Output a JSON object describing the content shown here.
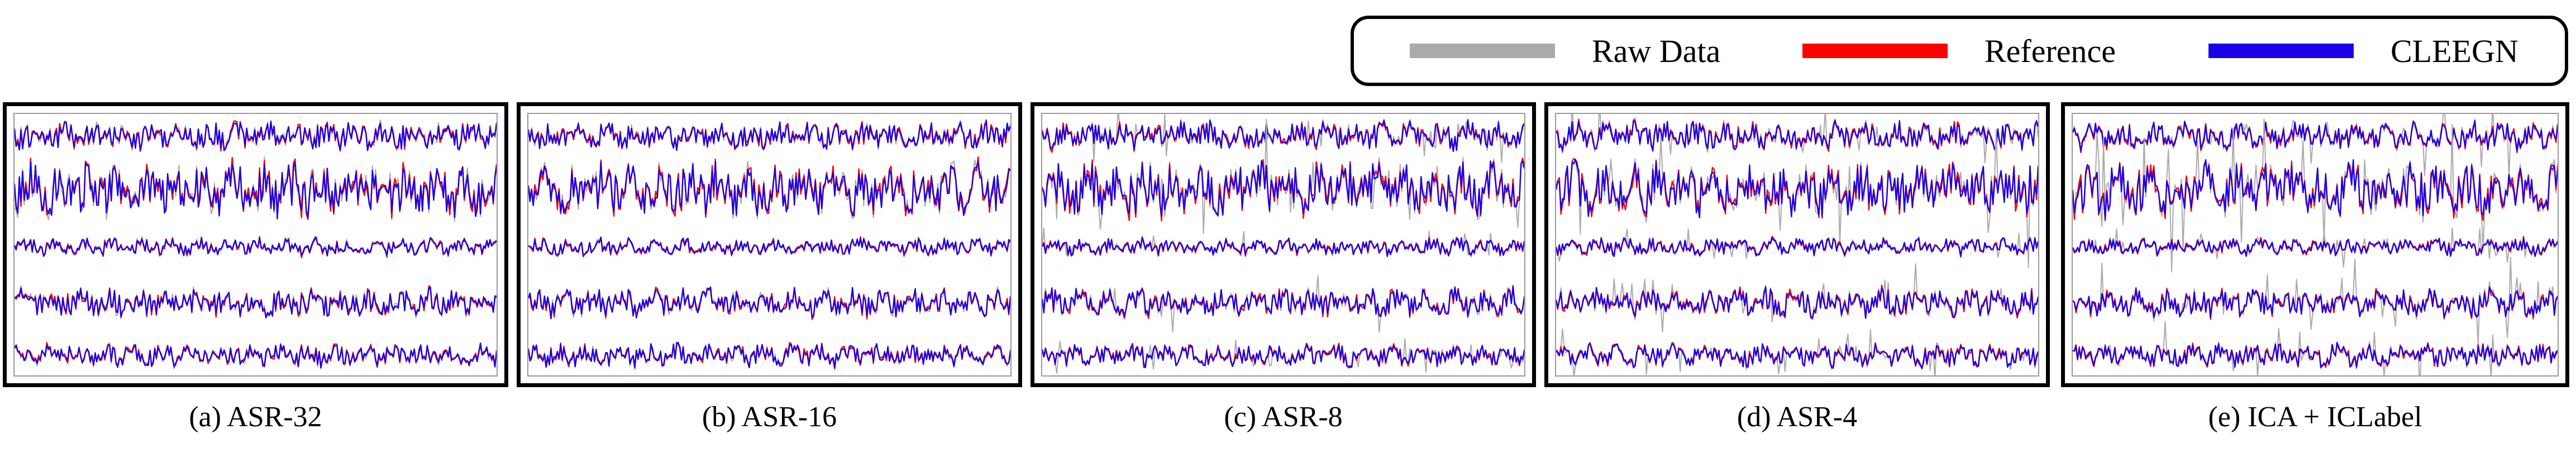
{
  "legend": {
    "items": [
      {
        "label": "Raw Data",
        "color": "#aaaaaa"
      },
      {
        "label": "Reference",
        "color": "#ff0000"
      },
      {
        "label": "CLEEGN",
        "color": "#1a00e6"
      }
    ]
  },
  "chart_data": [
    {
      "type": "line",
      "caption": "(a) ASR-32",
      "channels": 5,
      "series": [
        {
          "name": "Raw Data",
          "color": "#aaaaaa"
        },
        {
          "name": "Reference",
          "color": "#ff0000"
        },
        {
          "name": "CLEEGN",
          "color": "#1a00e6"
        }
      ]
    },
    {
      "type": "line",
      "caption": "(b) ASR-16",
      "channels": 5,
      "series": [
        {
          "name": "Raw Data",
          "color": "#aaaaaa"
        },
        {
          "name": "Reference",
          "color": "#ff0000"
        },
        {
          "name": "CLEEGN",
          "color": "#1a00e6"
        }
      ]
    },
    {
      "type": "line",
      "caption": "(c) ASR-8",
      "channels": 5,
      "series": [
        {
          "name": "Raw Data",
          "color": "#aaaaaa"
        },
        {
          "name": "Reference",
          "color": "#ff0000"
        },
        {
          "name": "CLEEGN",
          "color": "#1a00e6"
        }
      ]
    },
    {
      "type": "line",
      "caption": "(d) ASR-4",
      "channels": 5,
      "series": [
        {
          "name": "Raw Data",
          "color": "#aaaaaa"
        },
        {
          "name": "Reference",
          "color": "#ff0000"
        },
        {
          "name": "CLEEGN",
          "color": "#1a00e6"
        }
      ]
    },
    {
      "type": "line",
      "caption": "(e) ICA + ICLabel",
      "channels": 5,
      "series": [
        {
          "name": "Raw Data",
          "color": "#aaaaaa"
        },
        {
          "name": "Reference",
          "color": "#ff0000"
        },
        {
          "name": "CLEEGN",
          "color": "#1a00e6"
        }
      ]
    }
  ]
}
